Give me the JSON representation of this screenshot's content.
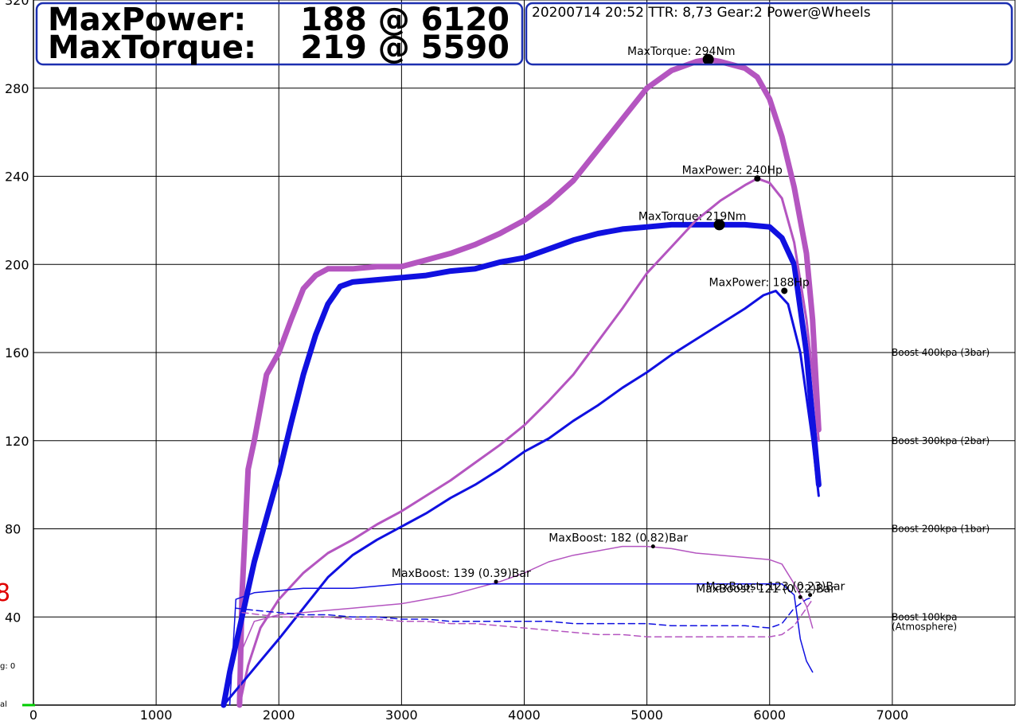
{
  "header": {
    "max_power_label": "MaxPower:",
    "max_power_value": "188 @ 6120",
    "max_torque_label": "MaxTorque:",
    "max_torque_value": "219 @ 5590",
    "run_info": "20200714 20:52 TTR: 8,73   Gear:2   Power@Wheels"
  },
  "edge_texts": {
    "left_red_number": "8",
    "left_small_1": "g: 0",
    "left_small_2": "al"
  },
  "chart_data": {
    "type": "line",
    "title": "",
    "xlabel": "",
    "ylabel": "",
    "xlim": [
      0,
      8000
    ],
    "ylim": [
      0,
      320
    ],
    "x_ticks": [
      0,
      1000,
      2000,
      3000,
      4000,
      5000,
      6000,
      7000
    ],
    "y_ticks": [
      40,
      80,
      120,
      160,
      200,
      240,
      280,
      320
    ],
    "grid": true,
    "colors": {
      "blue": "#1010e0",
      "purple": "#b455c0",
      "grid": "#000000",
      "box": "#1c2fb0"
    },
    "boost_reference_labels": [
      {
        "y": 160,
        "text": "Boost 400kpa (3bar)"
      },
      {
        "y": 120,
        "text": "Boost 300kpa (2bar)"
      },
      {
        "y": 80,
        "text": "Boost 200kpa (1bar)"
      },
      {
        "y": 40,
        "text": "Boost 100kpa",
        "text2": "(Atmosphere)"
      }
    ],
    "series": [
      {
        "color": "purple",
        "width": 7,
        "dash": "",
        "points": [
          [
            1680,
            0
          ],
          [
            1700,
            50
          ],
          [
            1750,
            107
          ],
          [
            1800,
            120
          ],
          [
            1900,
            150
          ],
          [
            2000,
            160
          ],
          [
            2100,
            175
          ],
          [
            2200,
            189
          ],
          [
            2300,
            195
          ],
          [
            2400,
            198
          ],
          [
            2600,
            198
          ],
          [
            2800,
            199
          ],
          [
            3000,
            199
          ],
          [
            3200,
            202
          ],
          [
            3400,
            205
          ],
          [
            3600,
            209
          ],
          [
            3800,
            214
          ],
          [
            4000,
            220
          ],
          [
            4200,
            228
          ],
          [
            4400,
            238
          ],
          [
            4600,
            252
          ],
          [
            4800,
            266
          ],
          [
            5000,
            280
          ],
          [
            5200,
            288
          ],
          [
            5400,
            292
          ],
          [
            5500,
            293
          ],
          [
            5600,
            292
          ],
          [
            5800,
            289
          ],
          [
            5900,
            285
          ],
          [
            6000,
            275
          ],
          [
            6100,
            258
          ],
          [
            6200,
            235
          ],
          [
            6300,
            205
          ],
          [
            6350,
            175
          ],
          [
            6400,
            125
          ]
        ]
      },
      {
        "color": "blue",
        "width": 7,
        "dash": "",
        "points": [
          [
            1550,
            0
          ],
          [
            1600,
            15
          ],
          [
            1700,
            40
          ],
          [
            1800,
            65
          ],
          [
            1900,
            85
          ],
          [
            2000,
            105
          ],
          [
            2100,
            128
          ],
          [
            2200,
            150
          ],
          [
            2300,
            168
          ],
          [
            2400,
            182
          ],
          [
            2500,
            190
          ],
          [
            2600,
            192
          ],
          [
            2800,
            193
          ],
          [
            3000,
            194
          ],
          [
            3200,
            195
          ],
          [
            3400,
            197
          ],
          [
            3600,
            198
          ],
          [
            3800,
            201
          ],
          [
            4000,
            203
          ],
          [
            4200,
            207
          ],
          [
            4400,
            211
          ],
          [
            4600,
            214
          ],
          [
            4800,
            216
          ],
          [
            5000,
            217
          ],
          [
            5200,
            218
          ],
          [
            5400,
            218
          ],
          [
            5600,
            218
          ],
          [
            5800,
            218
          ],
          [
            6000,
            217
          ],
          [
            6100,
            212
          ],
          [
            6200,
            200
          ],
          [
            6300,
            160
          ],
          [
            6350,
            130
          ],
          [
            6400,
            100
          ]
        ]
      },
      {
        "color": "purple",
        "width": 3,
        "dash": "",
        "points": [
          [
            1680,
            0
          ],
          [
            1750,
            18
          ],
          [
            1850,
            35
          ],
          [
            2000,
            48
          ],
          [
            2200,
            60
          ],
          [
            2400,
            69
          ],
          [
            2600,
            75
          ],
          [
            2800,
            82
          ],
          [
            3000,
            88
          ],
          [
            3200,
            95
          ],
          [
            3400,
            102
          ],
          [
            3600,
            110
          ],
          [
            3800,
            118
          ],
          [
            4000,
            127
          ],
          [
            4200,
            138
          ],
          [
            4400,
            150
          ],
          [
            4600,
            165
          ],
          [
            4800,
            180
          ],
          [
            5000,
            196
          ],
          [
            5200,
            208
          ],
          [
            5400,
            220
          ],
          [
            5600,
            229
          ],
          [
            5800,
            236
          ],
          [
            5900,
            239
          ],
          [
            6000,
            237
          ],
          [
            6100,
            230
          ],
          [
            6200,
            210
          ],
          [
            6300,
            175
          ],
          [
            6350,
            150
          ],
          [
            6400,
            120
          ]
        ]
      },
      {
        "color": "blue",
        "width": 3,
        "dash": "",
        "points": [
          [
            1550,
            0
          ],
          [
            1700,
            10
          ],
          [
            1850,
            20
          ],
          [
            2000,
            30
          ],
          [
            2200,
            44
          ],
          [
            2400,
            58
          ],
          [
            2600,
            68
          ],
          [
            2800,
            75
          ],
          [
            3000,
            81
          ],
          [
            3200,
            87
          ],
          [
            3400,
            94
          ],
          [
            3600,
            100
          ],
          [
            3800,
            107
          ],
          [
            4000,
            115
          ],
          [
            4200,
            121
          ],
          [
            4400,
            129
          ],
          [
            4600,
            136
          ],
          [
            4800,
            144
          ],
          [
            5000,
            151
          ],
          [
            5200,
            159
          ],
          [
            5400,
            166
          ],
          [
            5600,
            173
          ],
          [
            5800,
            180
          ],
          [
            5950,
            186
          ],
          [
            6050,
            188
          ],
          [
            6150,
            182
          ],
          [
            6250,
            160
          ],
          [
            6300,
            140
          ],
          [
            6350,
            120
          ],
          [
            6400,
            95
          ]
        ]
      },
      {
        "color": "purple",
        "width": 1.5,
        "dash": "",
        "points": [
          [
            1680,
            0
          ],
          [
            1700,
            25
          ],
          [
            1800,
            38
          ],
          [
            2000,
            41
          ],
          [
            2200,
            42
          ],
          [
            2400,
            43
          ],
          [
            2600,
            44
          ],
          [
            2800,
            45
          ],
          [
            3000,
            46
          ],
          [
            3200,
            48
          ],
          [
            3400,
            50
          ],
          [
            3600,
            53
          ],
          [
            3800,
            56
          ],
          [
            4000,
            60
          ],
          [
            4200,
            65
          ],
          [
            4400,
            68
          ],
          [
            4600,
            70
          ],
          [
            4800,
            72
          ],
          [
            5000,
            72
          ],
          [
            5200,
            71
          ],
          [
            5400,
            69
          ],
          [
            5600,
            68
          ],
          [
            5800,
            67
          ],
          [
            6000,
            66
          ],
          [
            6100,
            64
          ],
          [
            6200,
            55
          ],
          [
            6300,
            45
          ],
          [
            6350,
            35
          ]
        ]
      },
      {
        "color": "blue",
        "width": 1.5,
        "dash": "",
        "points": [
          [
            1600,
            0
          ],
          [
            1650,
            48
          ],
          [
            1800,
            51
          ],
          [
            2000,
            52
          ],
          [
            2200,
            53
          ],
          [
            2400,
            53
          ],
          [
            2600,
            53
          ],
          [
            2800,
            54
          ],
          [
            3000,
            55
          ],
          [
            3200,
            55
          ],
          [
            3400,
            55
          ],
          [
            3600,
            55
          ],
          [
            3800,
            55
          ],
          [
            4000,
            55
          ],
          [
            4200,
            55
          ],
          [
            4400,
            55
          ],
          [
            4600,
            55
          ],
          [
            4800,
            55
          ],
          [
            5000,
            55
          ],
          [
            5200,
            55
          ],
          [
            5400,
            55
          ],
          [
            5600,
            55
          ],
          [
            5800,
            55
          ],
          [
            6000,
            55
          ],
          [
            6100,
            55
          ],
          [
            6200,
            50
          ],
          [
            6250,
            30
          ],
          [
            6300,
            20
          ],
          [
            6350,
            15
          ]
        ]
      },
      {
        "color": "blue",
        "width": 1.5,
        "dash": "8,5",
        "points": [
          [
            1650,
            44
          ],
          [
            1800,
            43
          ],
          [
            2000,
            42
          ],
          [
            2200,
            41
          ],
          [
            2400,
            41
          ],
          [
            2600,
            40
          ],
          [
            2800,
            40
          ],
          [
            3000,
            39
          ],
          [
            3200,
            39
          ],
          [
            3400,
            38
          ],
          [
            3600,
            38
          ],
          [
            3800,
            38
          ],
          [
            4000,
            38
          ],
          [
            4200,
            38
          ],
          [
            4400,
            37
          ],
          [
            4600,
            37
          ],
          [
            4800,
            37
          ],
          [
            5000,
            37
          ],
          [
            5200,
            36
          ],
          [
            5400,
            36
          ],
          [
            5600,
            36
          ],
          [
            5800,
            36
          ],
          [
            6000,
            35
          ],
          [
            6100,
            37
          ],
          [
            6200,
            44
          ],
          [
            6300,
            48
          ],
          [
            6350,
            49
          ]
        ]
      },
      {
        "color": "purple",
        "width": 1.5,
        "dash": "8,5",
        "points": [
          [
            1700,
            42
          ],
          [
            1850,
            41
          ],
          [
            2000,
            40
          ],
          [
            2200,
            40
          ],
          [
            2400,
            40
          ],
          [
            2600,
            39
          ],
          [
            2800,
            39
          ],
          [
            3000,
            38
          ],
          [
            3200,
            38
          ],
          [
            3400,
            37
          ],
          [
            3600,
            37
          ],
          [
            3800,
            36
          ],
          [
            4000,
            35
          ],
          [
            4200,
            34
          ],
          [
            4400,
            33
          ],
          [
            4600,
            32
          ],
          [
            4800,
            32
          ],
          [
            5000,
            31
          ],
          [
            5200,
            31
          ],
          [
            5400,
            31
          ],
          [
            5600,
            31
          ],
          [
            5800,
            31
          ],
          [
            6000,
            31
          ],
          [
            6100,
            32
          ],
          [
            6200,
            36
          ],
          [
            6300,
            44
          ],
          [
            6350,
            48
          ]
        ]
      }
    ],
    "annotations": [
      {
        "text": "MaxTorque: 294Nm",
        "x": 5500,
        "y": 293,
        "color": "#000000",
        "dot": 7
      },
      {
        "text": "MaxPower: 240Hp",
        "x": 5900,
        "y": 239,
        "color": "#000000",
        "dot": 4
      },
      {
        "text": "MaxTorque: 219Nm",
        "x": 5590,
        "y": 218,
        "color": "#000000",
        "dot": 7
      },
      {
        "text": "MaxPower: 188Hp",
        "x": 6120,
        "y": 188,
        "color": "#000000",
        "dot": 4
      },
      {
        "text": "MaxBoost: 182  (0.82)Bar",
        "x": 5050,
        "y": 72,
        "color": "#000000",
        "dot": 2.5
      },
      {
        "text": "MaxBoost: 139  (0.39)Bar",
        "x": 3770,
        "y": 56,
        "color": "#000000",
        "dot": 2.5
      },
      {
        "text": "MaxBoost: 123  (0.23)Bar",
        "x": 6330,
        "y": 50,
        "color": "#000000",
        "dot": 2.5
      },
      {
        "text": "MaxBoost: 121  (0.22)Bar",
        "x": 6250,
        "y": 49,
        "color": "#000000",
        "dot": 2.5
      }
    ]
  }
}
